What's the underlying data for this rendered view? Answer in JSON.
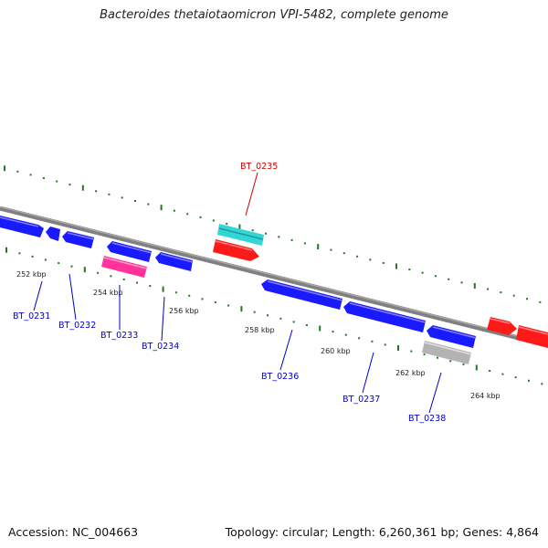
{
  "title": "Bacteroides thetaiotaomicron VPI-5482, complete genome",
  "footer": {
    "accession": "Accession: NC_004663",
    "summary": "Topology: circular; Length: 6,260,361 bp; Genes: 4,864"
  },
  "colors": {
    "backbone": "#808080",
    "tick": "#1f7a1f",
    "gene_blue": "#1a1aff",
    "gene_cyan": "#33d6d6",
    "gene_red": "#ff1a1a",
    "gene_pink": "#ff3399",
    "gene_gray": "#b3b3b3",
    "label_blue": "#0000cc",
    "label_red": "#cc0000"
  },
  "scale_labels": [
    "252 kbp",
    "254 kbp",
    "256 kbp",
    "258 kbp",
    "260 kbp",
    "262 kbp",
    "264 kbp"
  ],
  "gene_labels": [
    {
      "text": "BT_0231",
      "color": "label_blue"
    },
    {
      "text": "BT_0232",
      "color": "label_blue"
    },
    {
      "text": "BT_0233",
      "color": "label_blue"
    },
    {
      "text": "BT_0234",
      "color": "label_blue"
    },
    {
      "text": "BT_0235",
      "color": "label_red"
    },
    {
      "text": "BT_0236",
      "color": "label_blue"
    },
    {
      "text": "BT_0237",
      "color": "label_blue"
    },
    {
      "text": "BT_0238",
      "color": "label_blue"
    }
  ]
}
